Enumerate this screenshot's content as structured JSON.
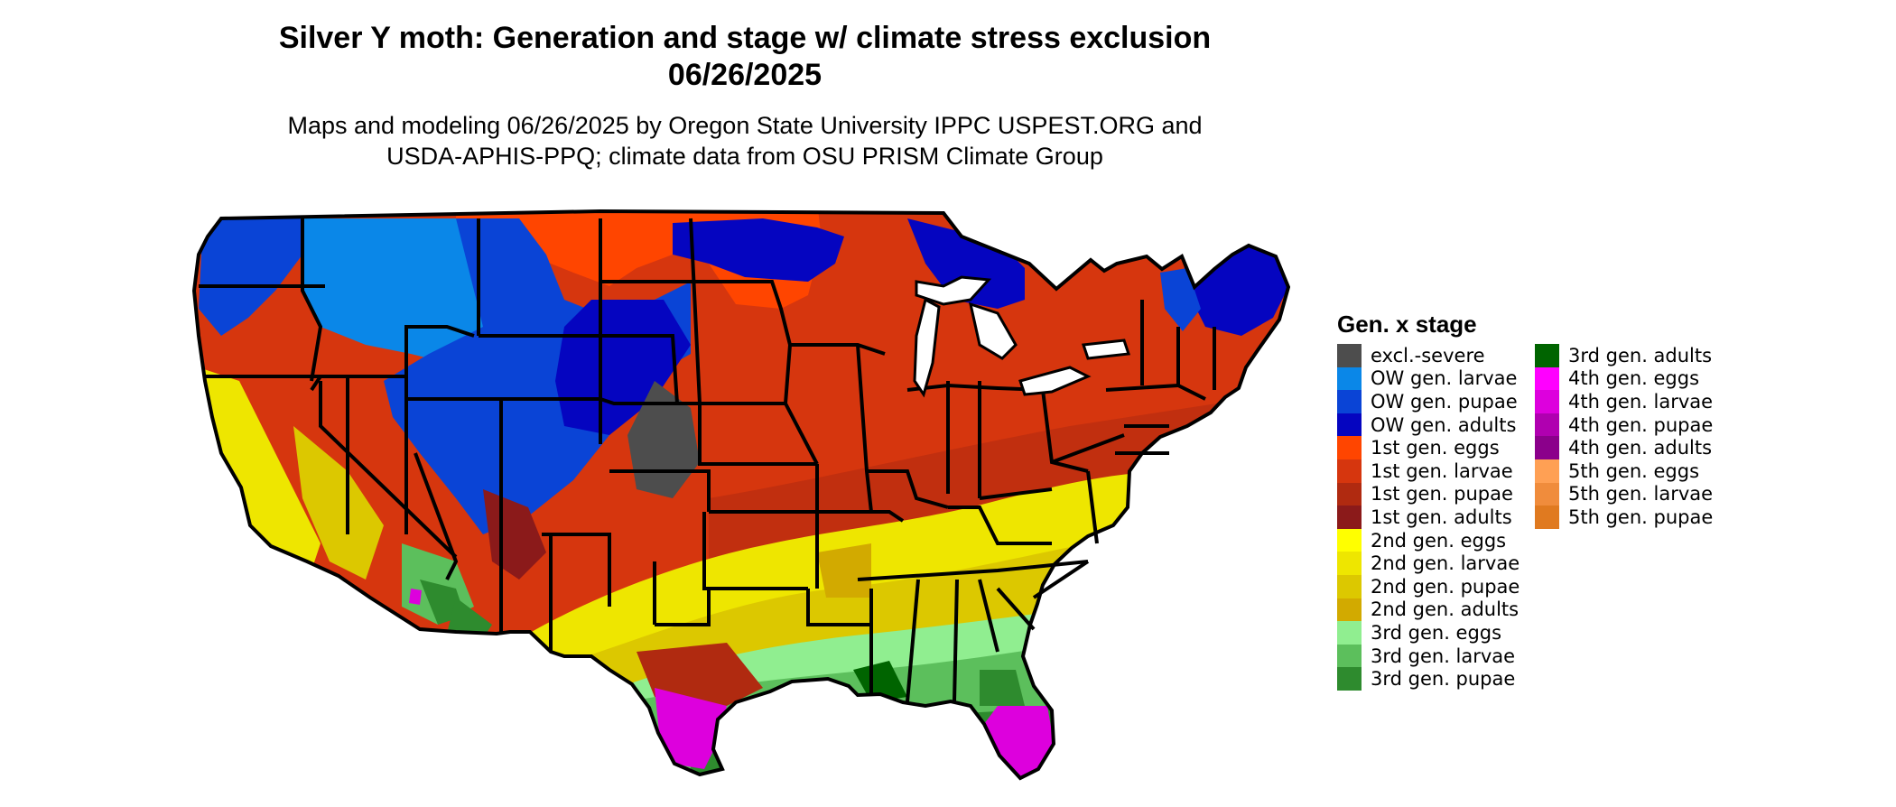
{
  "title": {
    "line1": "Silver Y moth: Generation and stage w/ climate stress exclusion",
    "line2": "06/26/2025"
  },
  "subtitle": {
    "line1": "Maps and modeling 06/26/2025 by Oregon State University IPPC USPEST.ORG and",
    "line2": "USDA-APHIS-PPQ; climate data from OSU PRISM Climate Group"
  },
  "legend": {
    "title": "Gen. x stage",
    "items": [
      {
        "label": "excl.-severe",
        "color": "#4d4d4d"
      },
      {
        "label": "OW gen. larvae",
        "color": "#0a87e8"
      },
      {
        "label": "OW gen. pupae",
        "color": "#0a44d6"
      },
      {
        "label": "OW gen. adults",
        "color": "#0505c0"
      },
      {
        "label": "1st gen. eggs",
        "color": "#ff4500"
      },
      {
        "label": "1st gen. larvae",
        "color": "#d6360e"
      },
      {
        "label": "1st gen. pupae",
        "color": "#b02a10"
      },
      {
        "label": "1st gen. adults",
        "color": "#8b1a1a"
      },
      {
        "label": "2nd gen. eggs",
        "color": "#ffff00"
      },
      {
        "label": "2nd gen. larvae",
        "color": "#eee600"
      },
      {
        "label": "2nd gen. pupae",
        "color": "#dcc800"
      },
      {
        "label": "2nd gen. adults",
        "color": "#d2aa00"
      },
      {
        "label": "3rd gen. eggs",
        "color": "#90ee90"
      },
      {
        "label": "3rd gen. larvae",
        "color": "#5cbf5c"
      },
      {
        "label": "3rd gen. pupae",
        "color": "#2e8b2e"
      },
      {
        "label": "3rd gen. adults",
        "color": "#006400"
      },
      {
        "label": "4th gen. eggs",
        "color": "#ff00ff"
      },
      {
        "label": "4th gen. larvae",
        "color": "#dd00dd"
      },
      {
        "label": "4th gen. pupae",
        "color": "#b000b0"
      },
      {
        "label": "4th gen. adults",
        "color": "#8b008b"
      },
      {
        "label": "5th gen. eggs",
        "color": "#ffa054"
      },
      {
        "label": "5th gen. larvae",
        "color": "#f08c3c"
      },
      {
        "label": "5th gen. pupae",
        "color": "#e07a20"
      }
    ]
  },
  "map": {
    "region": "conterminous-us",
    "border_color": "#000000"
  }
}
